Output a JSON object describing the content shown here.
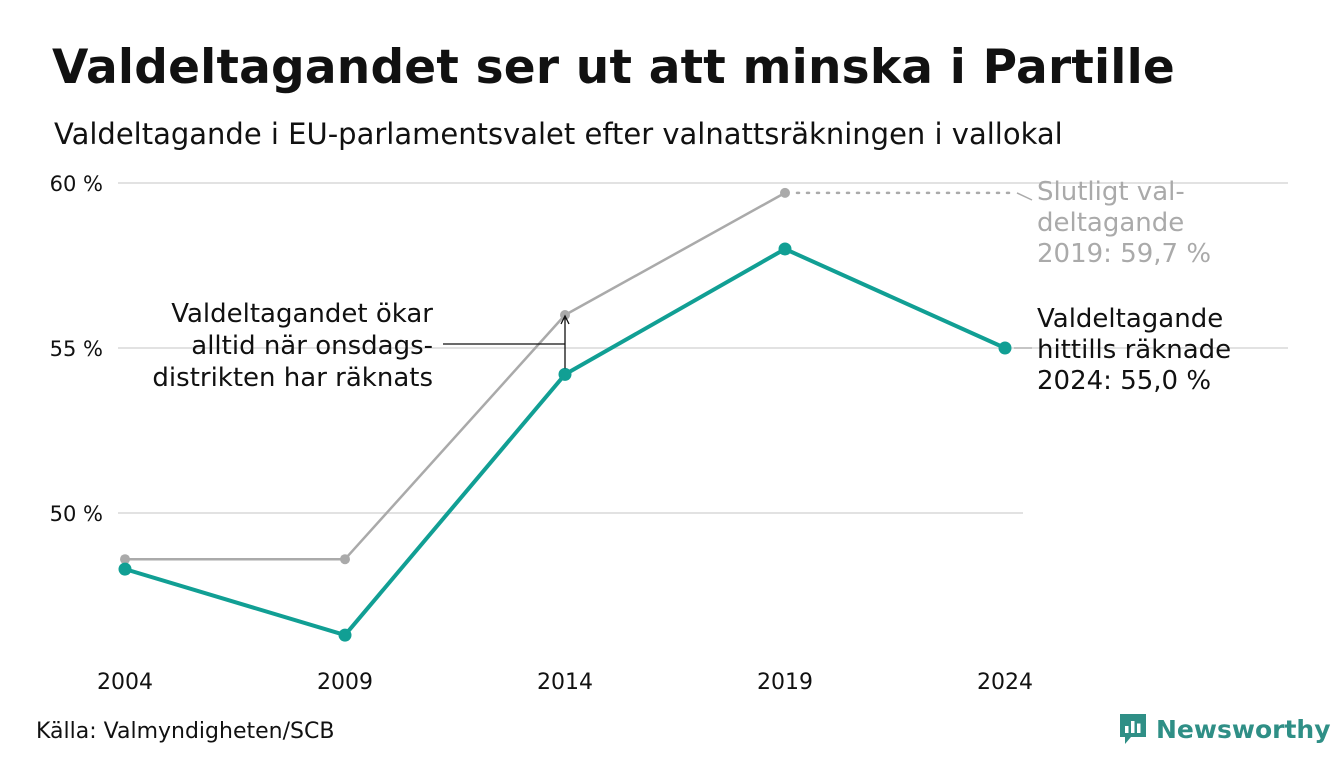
{
  "header": {
    "title": "Valdeltagandet ser ut att minska i Partille",
    "subtitle": "Valdeltagande i EU-parlamentsvalet efter valnattsräkningen i vallokal"
  },
  "footer": {
    "source": "Källa: Valmyndigheten/SCB",
    "brand": "Newsworthy"
  },
  "colors": {
    "teal": "#119f94",
    "gray": "#aaaaaa",
    "gridline": "#e2e2e2",
    "brand": "#2f8f86"
  },
  "chart_data": {
    "type": "line",
    "title": "Valdeltagandet ser ut att minska i Partille",
    "subtitle": "Valdeltagande i EU-parlamentsvalet efter valnattsräkningen i vallokal",
    "categories": [
      "2004",
      "2009",
      "2014",
      "2019",
      "2024"
    ],
    "y_ticks": [
      {
        "value": 50,
        "label": "50 %"
      },
      {
        "value": 55,
        "label": "55 %"
      },
      {
        "value": 60,
        "label": "60 %"
      }
    ],
    "ylim": [
      45.5,
      60.2
    ],
    "grid": true,
    "series": [
      {
        "name": "",
        "role": "final",
        "color": "#aaaaaa",
        "values": [
          48.6,
          48.6,
          56.0,
          59.7,
          null
        ]
      },
      {
        "name": "",
        "role": "election-night",
        "color": "#119f94",
        "values": [
          48.3,
          46.3,
          54.2,
          58.0,
          55.0
        ]
      }
    ],
    "annotations": [
      {
        "id": "final-2019",
        "lines": [
          "Slutligt val-",
          "deltagande",
          "2019: 59,7 %"
        ]
      },
      {
        "id": "current-2024",
        "lines": [
          "Valdeltagande",
          "hittills räknade",
          "2024: 55,0 %"
        ]
      },
      {
        "id": "gap-2014",
        "lines": [
          "Valdeltagandet ökar",
          "alltid när onsdags-",
          "distrikten har räknats"
        ]
      }
    ]
  }
}
